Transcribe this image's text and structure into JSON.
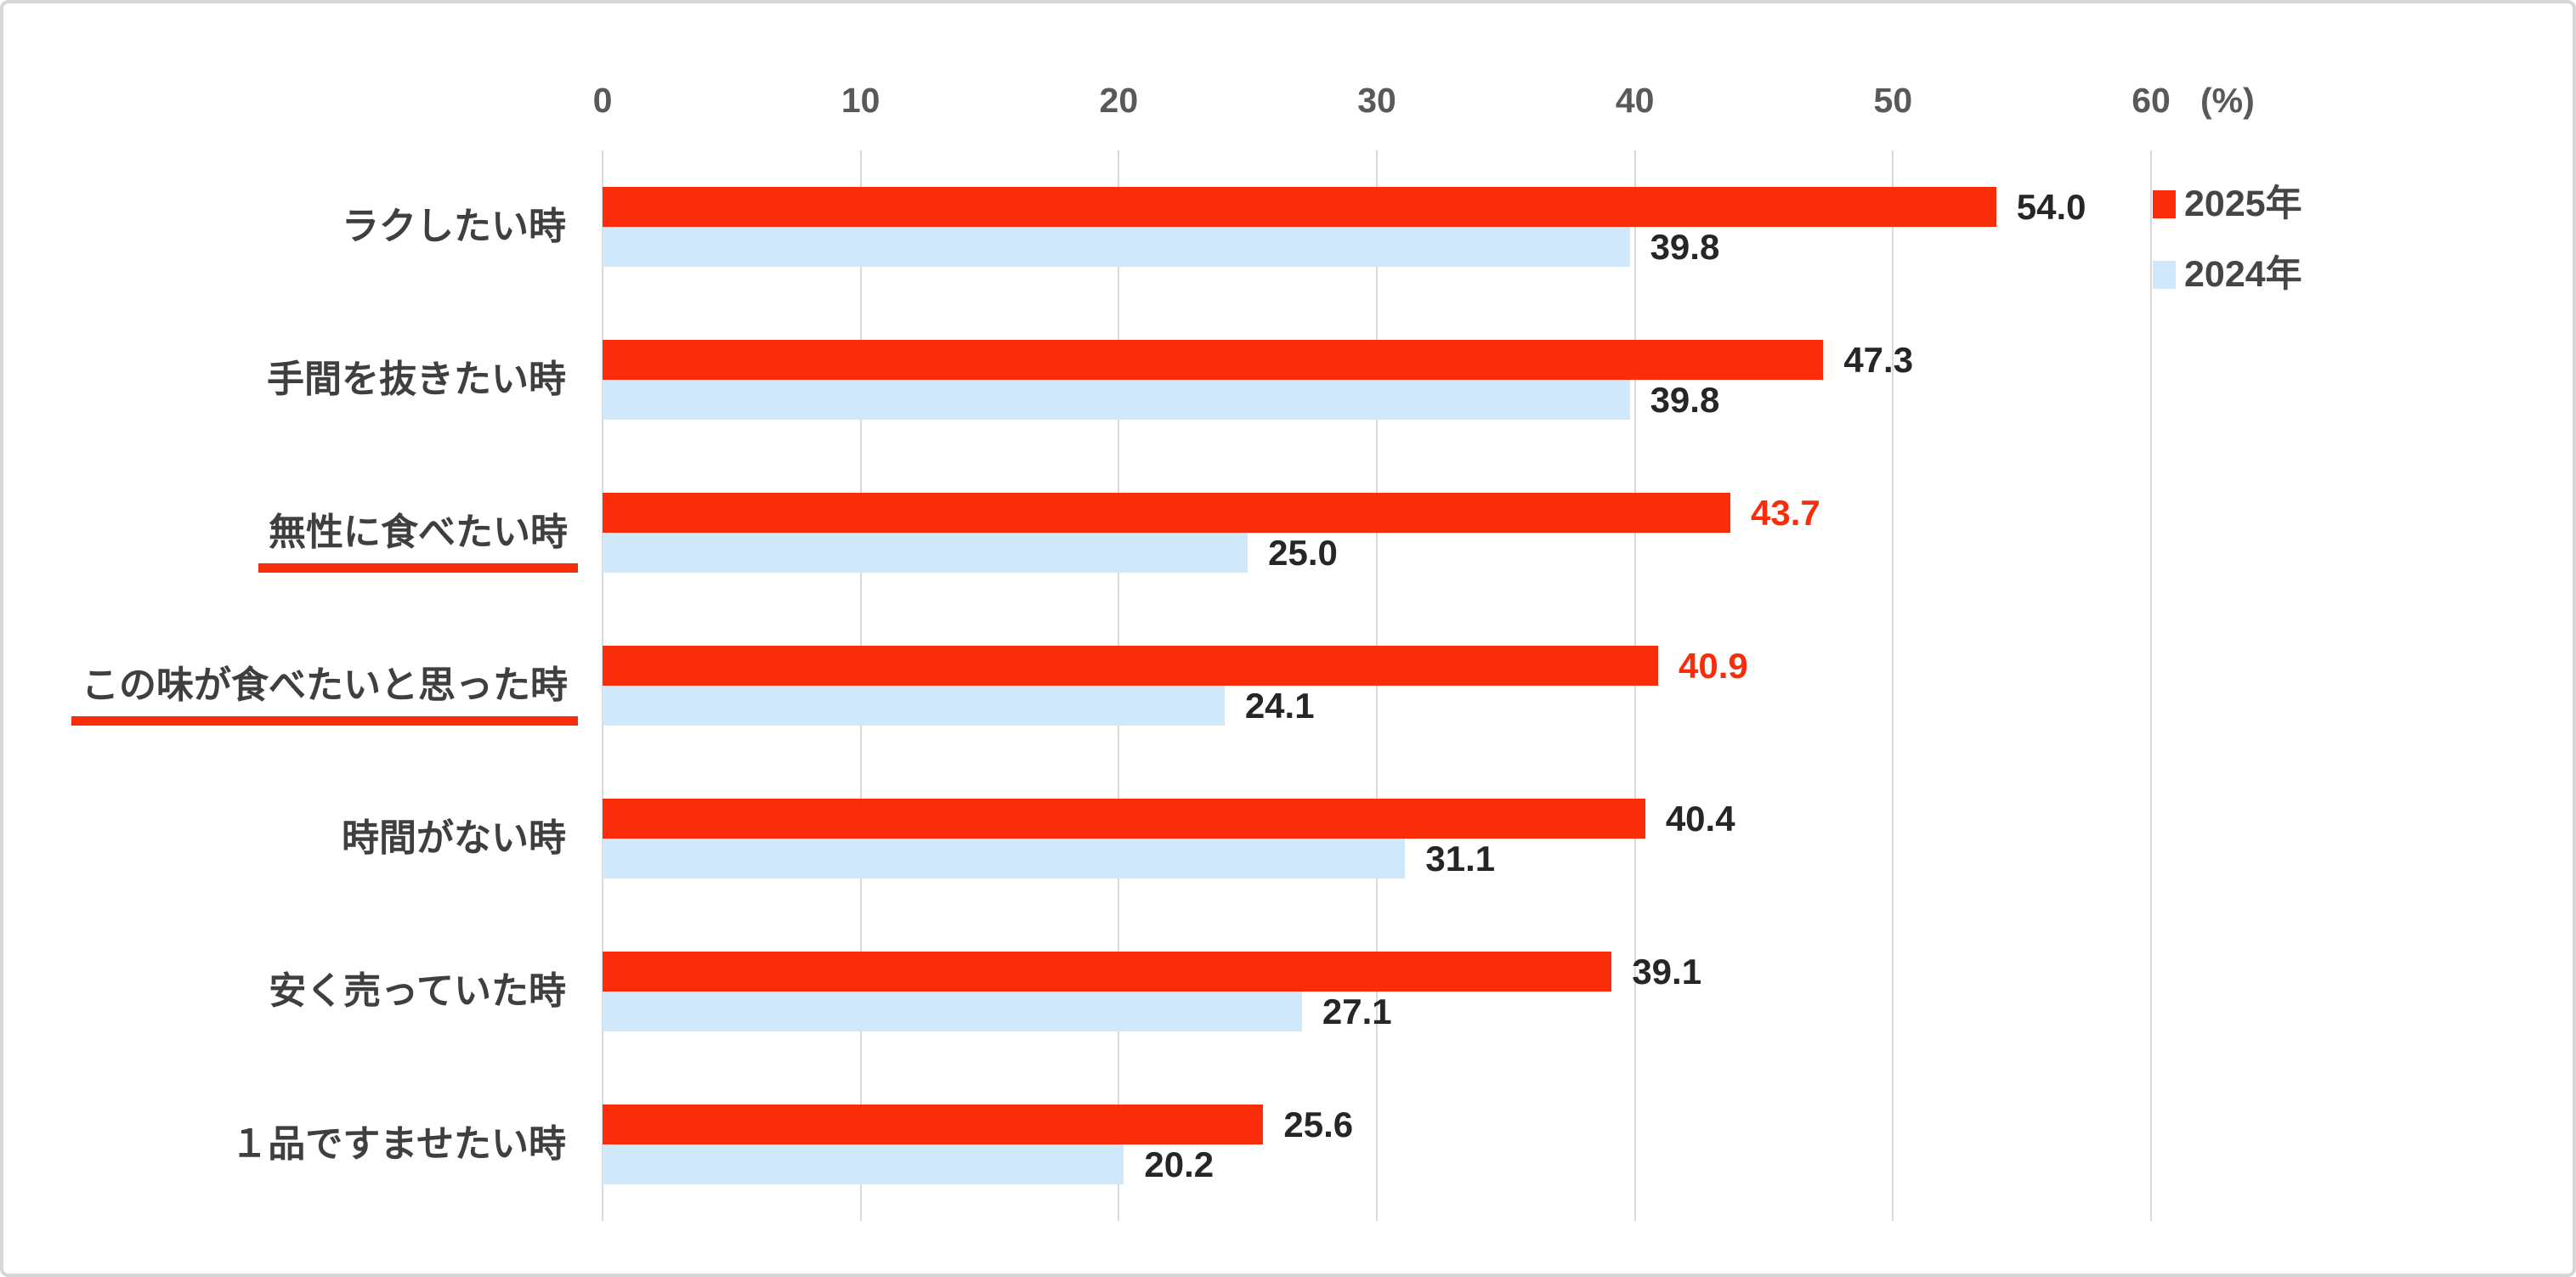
{
  "chart_data": {
    "type": "bar",
    "orientation": "horizontal",
    "title": "",
    "x_axis": {
      "min": 0,
      "max": 60,
      "tick_interval": 10,
      "ticks": [
        0,
        10,
        20,
        30,
        40,
        50,
        60
      ],
      "unit_label": "(%)"
    },
    "grid": "vertical-lines-on",
    "legend_position": "top-right",
    "categories": [
      "ラクしたい時",
      "手間を抜きたい時",
      "無性に食べたい時",
      "この味が食べたいと思った時",
      "時間がない時",
      "安く売っていた時",
      "１品ですませたい時"
    ],
    "highlighted_categories": [
      2,
      3
    ],
    "series": [
      {
        "name": "2025年",
        "color": "#f92d0a",
        "values": [
          54.0,
          47.3,
          43.7,
          40.9,
          40.4,
          39.1,
          25.6
        ],
        "red_value_indices": [
          2,
          3
        ]
      },
      {
        "name": "2024年",
        "color": "#cfe9fa",
        "values": [
          39.8,
          39.8,
          25.0,
          24.1,
          31.1,
          27.1,
          20.2
        ],
        "red_value_indices": []
      }
    ]
  },
  "colors": {
    "bar_2025": "#f92d0a",
    "bar_2024": "#cfe9fa",
    "value_text": "#262626",
    "emphasized_value_text": "#f92d0a",
    "category_text": "#3f3f3f",
    "axis_text": "#595959",
    "gridline": "#d9d9d9",
    "underline": "#f92d0a",
    "frame_border": "#d7d7d7"
  }
}
